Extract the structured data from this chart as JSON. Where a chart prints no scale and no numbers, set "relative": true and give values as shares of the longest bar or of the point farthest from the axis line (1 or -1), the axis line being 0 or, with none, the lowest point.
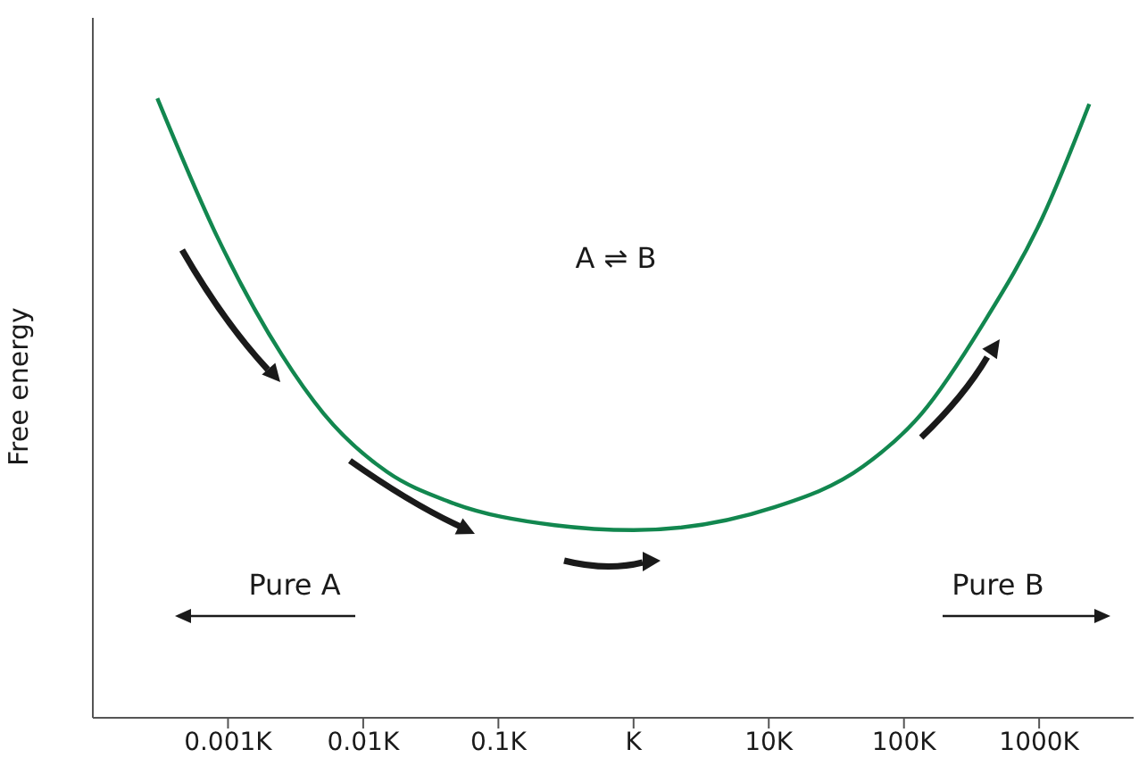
{
  "chart_data": {
    "type": "line",
    "ylabel": "Free energy",
    "relative": true,
    "log": "x",
    "x": [
      0.0003,
      0.00083,
      0.0025,
      0.0051,
      0.015,
      0.043,
      0.26,
      1,
      11,
      50,
      135,
      380,
      1050,
      2350
    ],
    "series": [
      {
        "color": "#12874f",
        "values": [
          1.0,
          0.777,
          0.586,
          0.491,
          0.397,
          0.349,
          0.311,
          0.303,
          0.34,
          0.406,
          0.491,
          0.634,
          0.806,
          0.991
        ]
      }
    ],
    "xlim": [
      0.0001,
      5000
    ],
    "xticks": [
      {
        "value": 0.001,
        "label": "0.001K"
      },
      {
        "value": 0.01,
        "label": "0.01K"
      },
      {
        "value": 0.1,
        "label": "0.1K"
      },
      {
        "value": 1,
        "label": "K"
      },
      {
        "value": 10,
        "label": "10K"
      },
      {
        "value": 100,
        "label": "100K"
      },
      {
        "value": 1000,
        "label": "1000K"
      }
    ],
    "annotations": [
      "A ⇌ B",
      "Pure A",
      "Pure B"
    ],
    "grid": false,
    "legend": false
  }
}
